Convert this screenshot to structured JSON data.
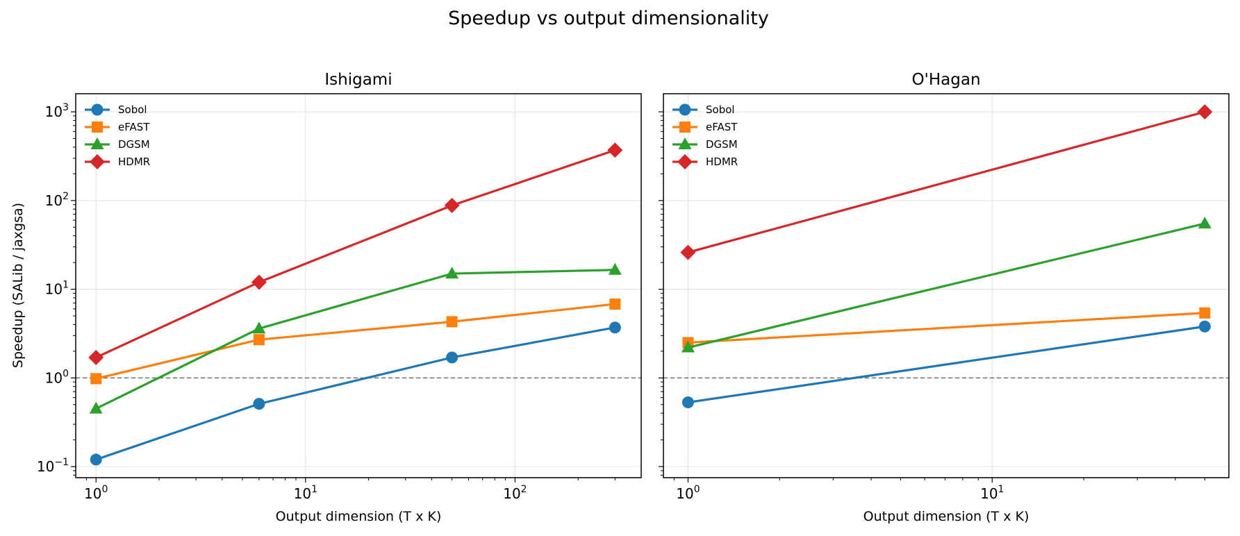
{
  "figure": {
    "suptitle": "Speedup vs output dimensionality",
    "ylabel": "Speedup (SALib / jaxgsa)"
  },
  "chart_data": [
    {
      "type": "line",
      "title": "Ishigami",
      "xlabel": "Output dimension (T x K)",
      "ylabel": "Speedup (SALib / jaxgsa)",
      "xscale": "log",
      "yscale": "log",
      "xlim": [
        0.8,
        400
      ],
      "ylim": [
        0.075,
        1600
      ],
      "x": [
        1,
        6,
        50,
        300
      ],
      "xtick_labels": [
        {
          "base": "10",
          "exp": "0",
          "value": 1
        },
        {
          "base": "10",
          "exp": "1",
          "value": 10
        },
        {
          "base": "10",
          "exp": "2",
          "value": 100
        }
      ],
      "ytick_labels": [
        {
          "base": "10",
          "exp": "−1",
          "value": 0.1
        },
        {
          "base": "10",
          "exp": "0",
          "value": 1
        },
        {
          "base": "10",
          "exp": "1",
          "value": 10
        },
        {
          "base": "10",
          "exp": "2",
          "value": 100
        },
        {
          "base": "10",
          "exp": "3",
          "value": 1000
        }
      ],
      "reference_line": 1,
      "grid": true,
      "legend_position": "top-left",
      "series": [
        {
          "name": "Sobol",
          "values": [
            0.12,
            0.51,
            1.7,
            3.7
          ],
          "color": "#1f77b4",
          "marker": "circle"
        },
        {
          "name": "eFAST",
          "values": [
            0.98,
            2.7,
            4.3,
            6.8
          ],
          "color": "#ff7f0e",
          "marker": "square"
        },
        {
          "name": "DGSM",
          "values": [
            0.45,
            3.6,
            15,
            16.5
          ],
          "color": "#2ca02c",
          "marker": "triangle"
        },
        {
          "name": "HDMR",
          "values": [
            1.7,
            12,
            88,
            370
          ],
          "color": "#d62728",
          "marker": "diamond"
        }
      ]
    },
    {
      "type": "line",
      "title": "O'Hagan",
      "xlabel": "Output dimension (T x K)",
      "xscale": "log",
      "yscale": "log",
      "xlim": [
        0.83,
        60
      ],
      "ylim": [
        0.075,
        1600
      ],
      "x": [
        1,
        50
      ],
      "xtick_labels": [
        {
          "base": "10",
          "exp": "0",
          "value": 1
        },
        {
          "base": "10",
          "exp": "1",
          "value": 10
        }
      ],
      "reference_line": 1,
      "grid": true,
      "legend_position": "top-left",
      "series": [
        {
          "name": "Sobol",
          "values": [
            0.53,
            3.8
          ],
          "color": "#1f77b4",
          "marker": "circle"
        },
        {
          "name": "eFAST",
          "values": [
            2.5,
            5.4
          ],
          "color": "#ff7f0e",
          "marker": "square"
        },
        {
          "name": "DGSM",
          "values": [
            2.2,
            55
          ],
          "color": "#2ca02c",
          "marker": "triangle"
        },
        {
          "name": "HDMR",
          "values": [
            26,
            1000
          ],
          "color": "#d62728",
          "marker": "diamond"
        }
      ]
    }
  ]
}
